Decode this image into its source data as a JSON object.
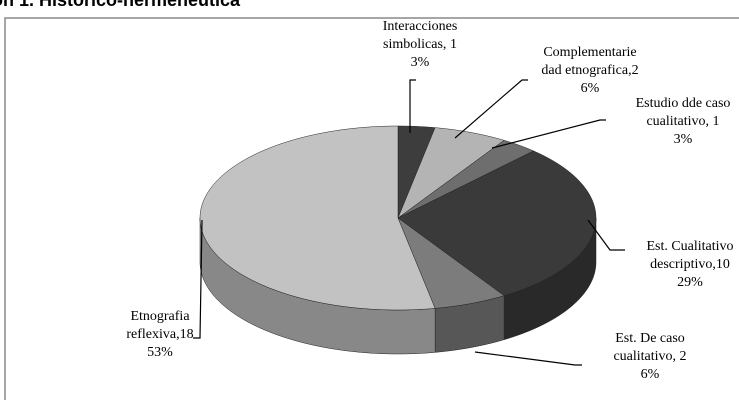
{
  "chart_data": {
    "type": "pie3d",
    "title": "ón 1. Histórico-hermenéutica",
    "categories": [
      [
        "Interacciones",
        "simbolicas, "
      ],
      [
        "Complementarie",
        "dad etnografica,"
      ],
      [
        "Estudio dde caso",
        "cualitativo, "
      ],
      [
        "Est. Cualitativo",
        "descriptivo,"
      ],
      [
        "Est. De caso",
        "cualitativo, "
      ],
      [
        "Etnografia",
        "reflexiva,"
      ]
    ],
    "counts": [
      1,
      2,
      1,
      10,
      2,
      18
    ],
    "values": [
      3,
      6,
      3,
      29,
      6,
      53
    ],
    "value_labels": [
      "3%",
      "6%",
      "3%",
      "29%",
      "6%",
      "53%"
    ],
    "colors": [
      "#3d3d3d",
      "#b4b4b4",
      "#6e6e6e",
      "#3a3a3a",
      "#7c7c7c",
      "#c2c2c2"
    ]
  }
}
